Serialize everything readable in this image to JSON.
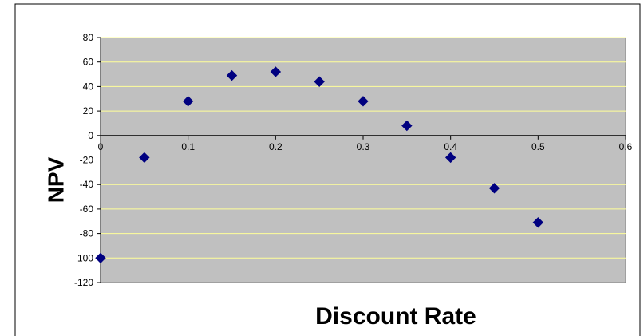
{
  "chart_data": {
    "type": "scatter",
    "title": "",
    "xlabel": "Discount Rate",
    "ylabel": "NPV",
    "xlim": [
      0,
      0.6
    ],
    "ylim": [
      -120,
      80
    ],
    "x_ticks": [
      0,
      0.1,
      0.2,
      0.3,
      0.4,
      0.5,
      0.6
    ],
    "x_tick_labels": [
      "0",
      "0.1",
      "0.2",
      "0.3",
      "0.4",
      "0.5",
      "0.6"
    ],
    "y_ticks": [
      -120,
      -100,
      -80,
      -60,
      -40,
      -20,
      0,
      20,
      40,
      60,
      80
    ],
    "y_tick_labels": [
      "-120",
      "-100",
      "-80",
      "-60",
      "-40",
      "-20",
      "0",
      "20",
      "40",
      "60",
      "80"
    ],
    "grid": "horizontal",
    "legend": "none",
    "marker": "diamond",
    "series": [
      {
        "x": [
          0,
          0.05,
          0.1,
          0.15,
          0.2,
          0.25,
          0.3,
          0.35,
          0.4,
          0.45,
          0.5
        ],
        "y": [
          -100,
          -18,
          28,
          49,
          52,
          44,
          28,
          8,
          -18,
          -43,
          -71
        ]
      }
    ],
    "colors": {
      "plot_background": "#c0c0c0",
      "gridline": "#ffff99",
      "marker": "#000080",
      "axis": "#000000",
      "frame_border": "#000000"
    }
  }
}
